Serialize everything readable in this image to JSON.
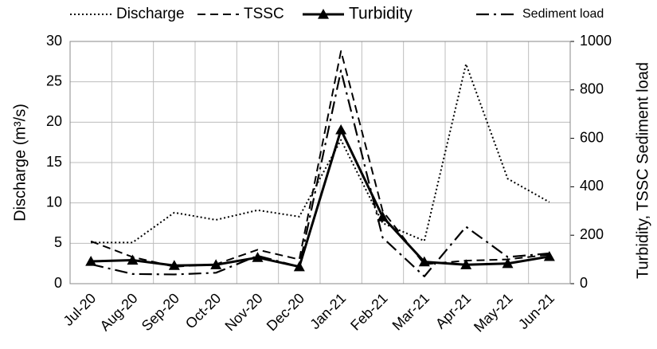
{
  "chart_data": {
    "type": "line",
    "categories": [
      "Jul-20",
      "Aug-20",
      "Sep-20",
      "Oct-20",
      "Nov-20",
      "Dec-20",
      "Jan-21",
      "Feb-21",
      "Mar-21",
      "Apr-21",
      "May-21",
      "Jun-21"
    ],
    "series": [
      {
        "name": "Discharge",
        "color": "#000000",
        "style": "dotted",
        "axis": "y",
        "values": [
          5.1,
          5.1,
          8.8,
          7.9,
          9.1,
          8.3,
          17.8,
          7.5,
          5.3,
          27.2,
          13,
          10.1
        ]
      },
      {
        "name": "TSSC",
        "color": "#000000",
        "style": "dashed",
        "axis": "y2",
        "values": [
          175,
          110,
          70,
          80,
          140,
          100,
          960,
          300,
          80,
          95,
          100,
          120
        ]
      },
      {
        "name": "Turbidity",
        "color": "#000000",
        "style": "solid",
        "marker": "triangle",
        "axis": "y2",
        "values": [
          92,
          97,
          75,
          78,
          108,
          70,
          635,
          276,
          90,
          78,
          83,
          112
        ]
      },
      {
        "name": "Sediment load",
        "color": "#000000",
        "style": "dashdot",
        "axis": "y2",
        "values": [
          80,
          40,
          38,
          45,
          115,
          70,
          880,
          190,
          30,
          235,
          110,
          125
        ]
      }
    ],
    "ylabel": "Discharge (m³/s)",
    "y2label": "Turbidity, TSSC Sediment load",
    "ylim": [
      0,
      30
    ],
    "yticks": [
      0,
      5,
      10,
      15,
      20,
      25,
      30
    ],
    "y2lim": [
      0,
      1000
    ],
    "y2ticks": [
      0,
      200,
      400,
      600,
      800,
      1000
    ],
    "grid": true,
    "legend": "top"
  }
}
